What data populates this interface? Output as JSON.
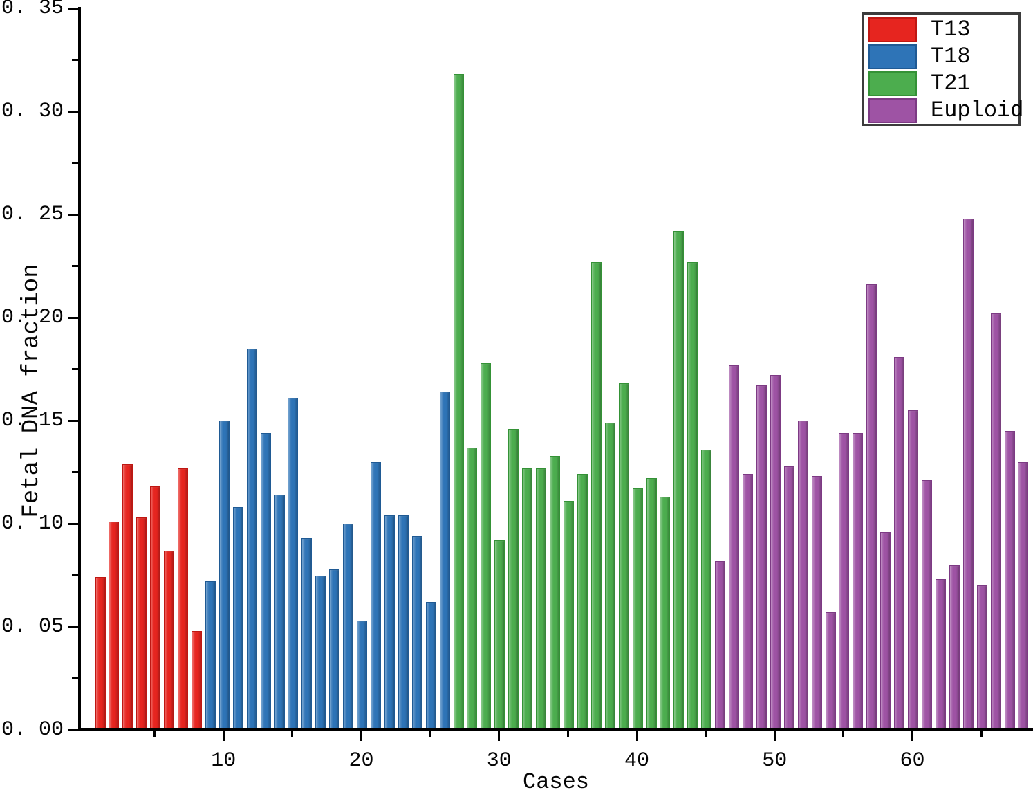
{
  "figure": {
    "background": "#ffffff"
  },
  "axes": {
    "ylabel": "Fetal DNA fraction",
    "xlabel": "Cases",
    "y_major_ticks": [
      {
        "value": 0.0,
        "label": "0. 00"
      },
      {
        "value": 0.05,
        "label": "0. 05"
      },
      {
        "value": 0.1,
        "label": "0. 10"
      },
      {
        "value": 0.15,
        "label": "0. 15"
      },
      {
        "value": 0.2,
        "label": "0. 20"
      },
      {
        "value": 0.25,
        "label": "0. 25"
      },
      {
        "value": 0.3,
        "label": "0. 30"
      },
      {
        "value": 0.35,
        "label": "0. 35"
      }
    ],
    "y_minor_ticks": [
      0.025,
      0.075,
      0.125,
      0.175,
      0.225,
      0.275,
      0.325
    ],
    "x_major_ticks": [
      {
        "case": 10,
        "label": "10"
      },
      {
        "case": 20,
        "label": "20"
      },
      {
        "case": 30,
        "label": "30"
      },
      {
        "case": 40,
        "label": "40"
      },
      {
        "case": 50,
        "label": "50"
      },
      {
        "case": 60,
        "label": "60"
      }
    ],
    "x_minor_ticks": [
      5,
      15,
      25,
      35,
      45,
      55,
      65
    ]
  },
  "legend": {
    "position": "top-right",
    "items": [
      {
        "label": "T13",
        "color": "#e6251f",
        "edge": "#bf1712"
      },
      {
        "label": "T18",
        "color": "#2e74b7",
        "edge": "#1f5a94"
      },
      {
        "label": "T21",
        "color": "#4cad4e",
        "edge": "#349236"
      },
      {
        "label": "Euploid",
        "color": "#9e53a4",
        "edge": "#7d3a84"
      }
    ]
  },
  "chart_data": {
    "type": "bar",
    "title": "",
    "xlabel": "Cases",
    "ylabel": "Fetal DNA fraction",
    "ylim": [
      0,
      0.35
    ],
    "xlim_cases": [
      1,
      68
    ],
    "grid": "off",
    "legend_position": "top-right",
    "series": [
      {
        "name": "T13",
        "color": "#e6251f",
        "edge": "#bf1712",
        "start_case": 1,
        "values": [
          0.074,
          0.101,
          0.129,
          0.103,
          0.118,
          0.087,
          0.127,
          0.048
        ]
      },
      {
        "name": "T18",
        "color": "#2e74b7",
        "edge": "#1f5a94",
        "start_case": 9,
        "values": [
          0.072,
          0.15,
          0.108,
          0.185,
          0.144,
          0.114,
          0.161,
          0.093,
          0.075,
          0.078,
          0.1,
          0.053,
          0.13,
          0.104,
          0.104,
          0.094,
          0.062,
          0.164
        ]
      },
      {
        "name": "T21",
        "color": "#4cad4e",
        "edge": "#349236",
        "start_case": 27,
        "values": [
          0.318,
          0.137,
          0.178,
          0.092,
          0.146,
          0.127,
          0.127,
          0.133,
          0.111,
          0.124,
          0.227,
          0.149,
          0.168,
          0.117,
          0.122,
          0.113,
          0.242,
          0.227,
          0.136
        ]
      },
      {
        "name": "Euploid",
        "color": "#9e53a4",
        "edge": "#7d3a84",
        "start_case": 46,
        "values": [
          0.082,
          0.177,
          0.124,
          0.167,
          0.172,
          0.128,
          0.15,
          0.123,
          0.057,
          0.144,
          0.144,
          0.216,
          0.096,
          0.181,
          0.155,
          0.121,
          0.073,
          0.08,
          0.248,
          0.07,
          0.202,
          0.145,
          0.13
        ]
      }
    ]
  }
}
